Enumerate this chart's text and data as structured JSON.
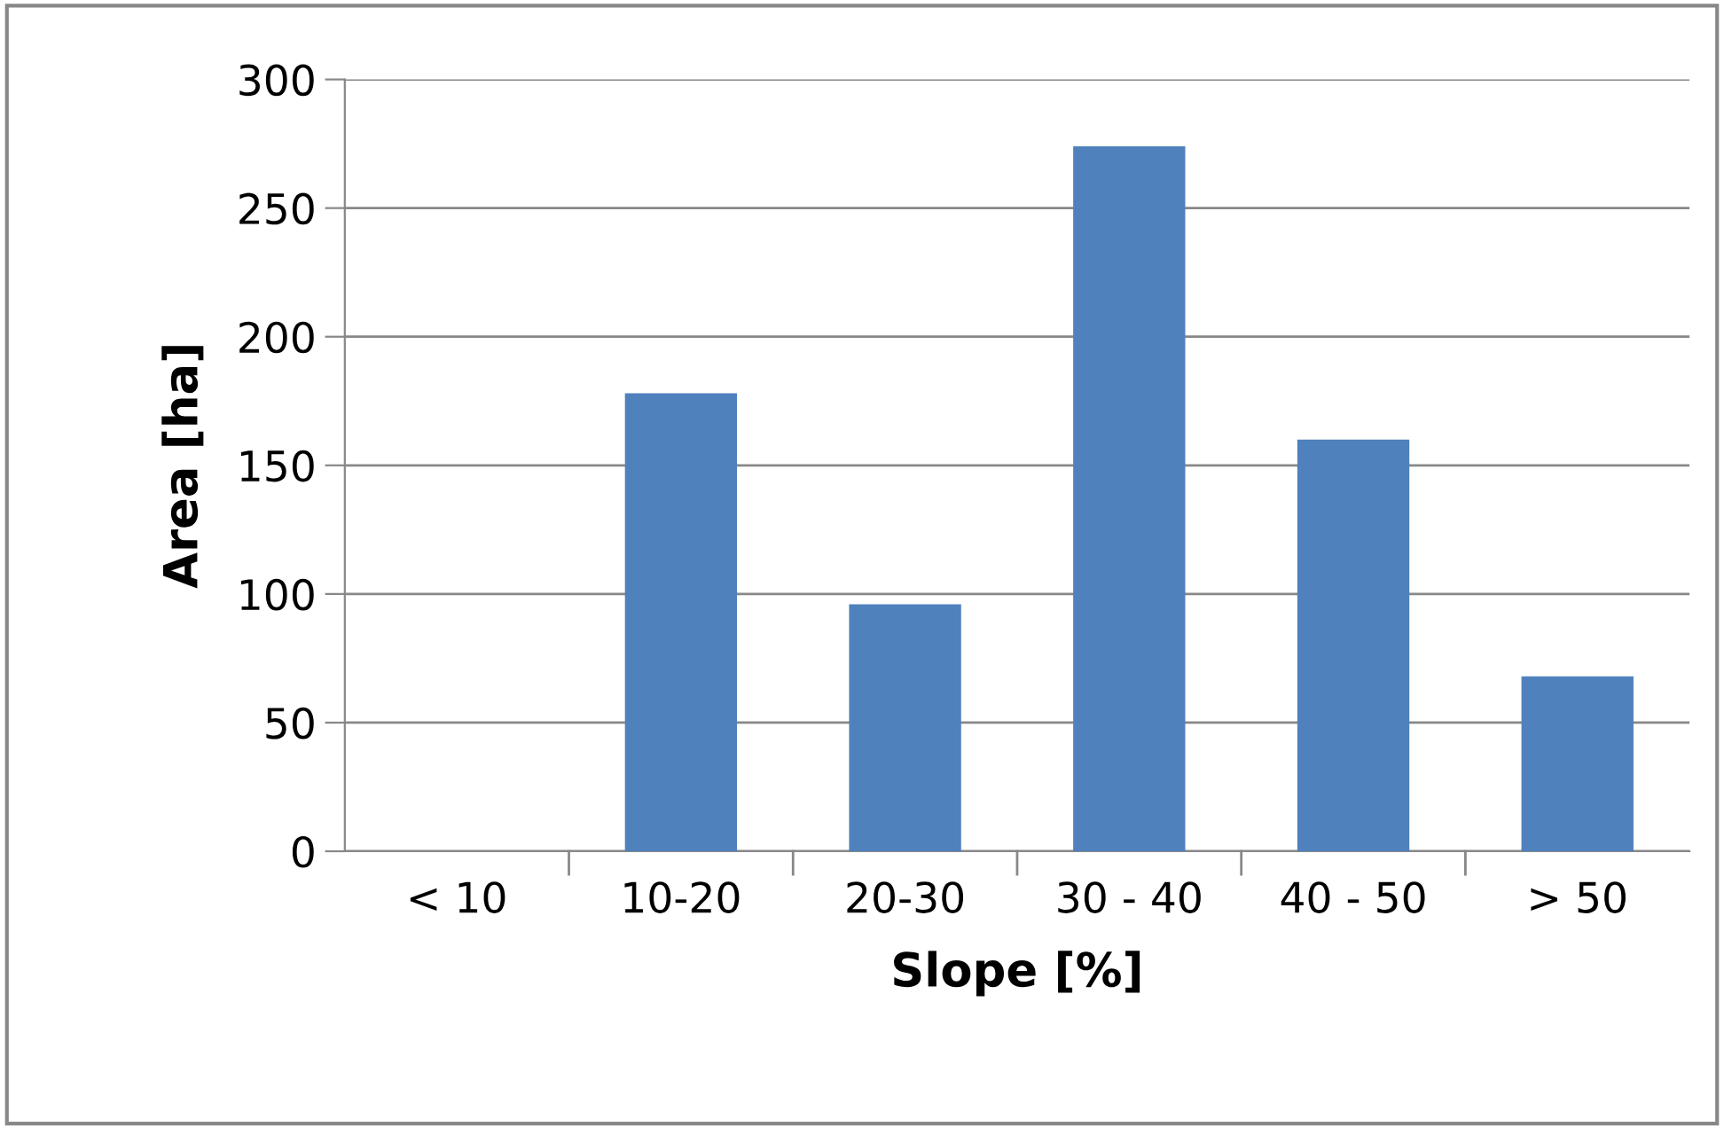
{
  "chart_data": {
    "type": "bar",
    "xlabel": "Slope [%]",
    "ylabel": "Area [ha]",
    "categories": [
      "< 10",
      "10-20",
      "20-30",
      "30 - 40",
      "40 - 50",
      "> 50"
    ],
    "values": [
      0,
      178,
      96,
      274,
      160,
      68
    ],
    "color": "#4f81bd",
    "ylim": [
      0,
      300
    ],
    "yticks": [
      0,
      50,
      100,
      150,
      200,
      250,
      300
    ],
    "grid": "y"
  }
}
